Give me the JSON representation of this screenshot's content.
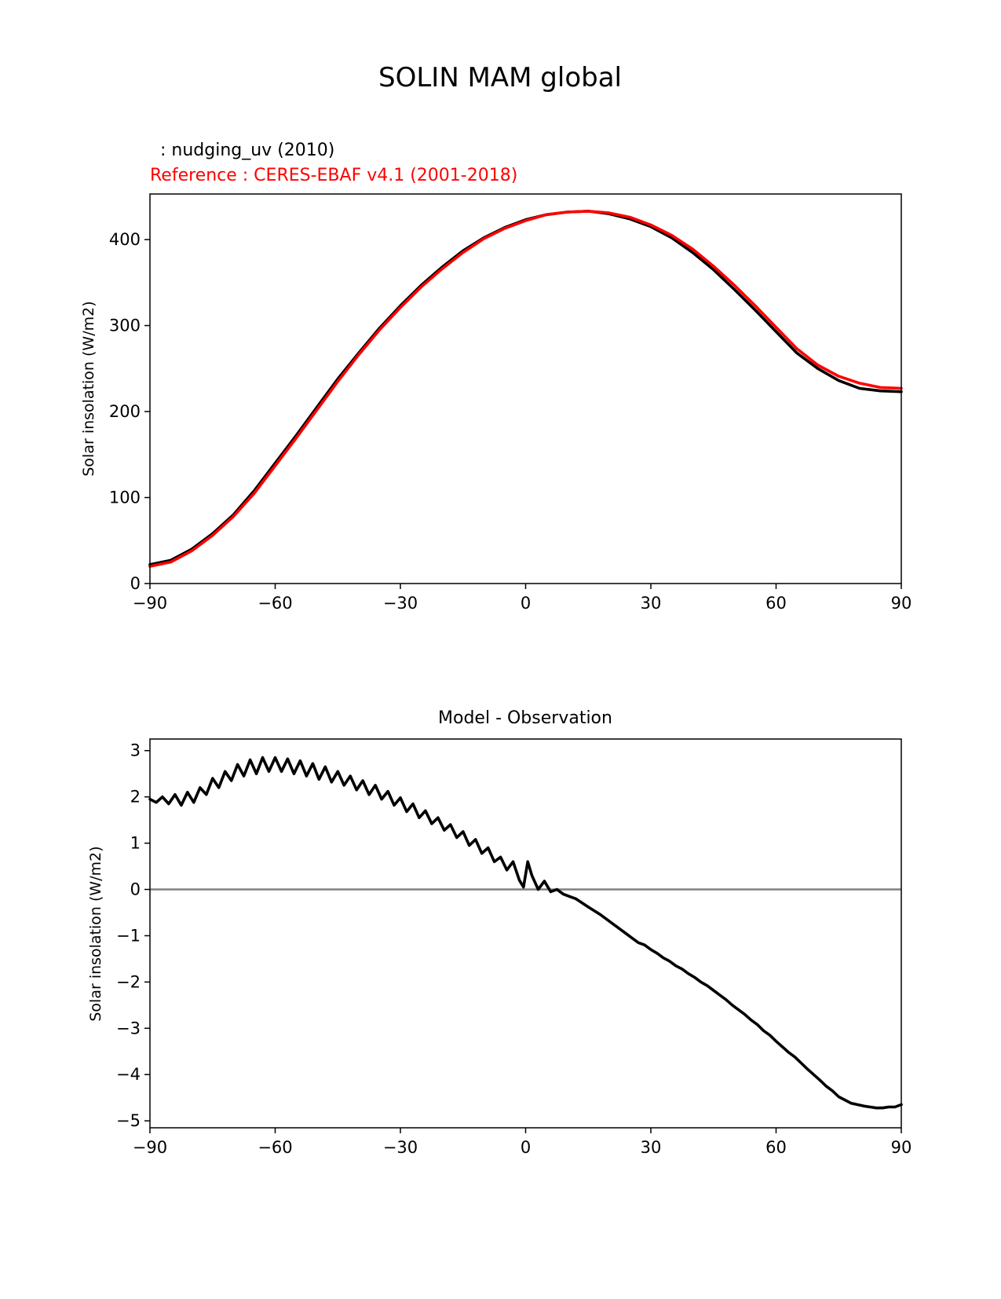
{
  "figure": {
    "title": "SOLIN MAM global"
  },
  "chart_data": [
    {
      "type": "line",
      "title": "",
      "legend": [
        {
          "text": " : nudging_uv (2010)",
          "color": "#000000"
        },
        {
          "text": "Reference : CERES-EBAF v4.1 (2001-2018)",
          "color": "#ff0000"
        }
      ],
      "xlabel": "",
      "ylabel": "Solar insolation (W/m2)",
      "xlim": [
        -90,
        90
      ],
      "ylim": [
        0,
        453
      ],
      "xticks": [
        -90,
        -60,
        -30,
        0,
        30,
        60,
        90
      ],
      "xtick_labels": [
        "−90",
        "−60",
        "−30",
        "0",
        "30",
        "60",
        "90"
      ],
      "yticks": [
        0,
        100,
        200,
        300,
        400
      ],
      "ytick_labels": [
        "0",
        "100",
        "200",
        "300",
        "400"
      ],
      "series": [
        {
          "color": "#000000",
          "x": [
            -90,
            -85,
            -80,
            -75,
            -70,
            -65,
            -60,
            -55,
            -50,
            -45,
            -40,
            -35,
            -30,
            -25,
            -20,
            -15,
            -10,
            -5,
            0,
            5,
            10,
            15,
            20,
            25,
            30,
            35,
            40,
            45,
            50,
            55,
            60,
            65,
            70,
            75,
            80,
            85,
            90
          ],
          "y": [
            22,
            27,
            40,
            58,
            80,
            108,
            140,
            172,
            205,
            238,
            268,
            297,
            323,
            347,
            368,
            387,
            402,
            414,
            423,
            429,
            432,
            433,
            430,
            424,
            415,
            402,
            385,
            365,
            342,
            318,
            293,
            268,
            250,
            236,
            227,
            224,
            223
          ]
        },
        {
          "color": "#ff0000",
          "x": [
            -90,
            -85,
            -80,
            -75,
            -70,
            -65,
            -60,
            -55,
            -50,
            -45,
            -40,
            -35,
            -30,
            -25,
            -20,
            -15,
            -10,
            -5,
            0,
            5,
            10,
            15,
            20,
            25,
            30,
            35,
            40,
            45,
            50,
            55,
            60,
            65,
            70,
            75,
            80,
            85,
            90
          ],
          "y": [
            20,
            25,
            38,
            56,
            78,
            105,
            137,
            169,
            202,
            235,
            266,
            295,
            321,
            345,
            366,
            385,
            401,
            413,
            422,
            429,
            432,
            433,
            431,
            426,
            417,
            405,
            389,
            369,
            347,
            323,
            298,
            273,
            254,
            241,
            233,
            228,
            227
          ]
        }
      ]
    },
    {
      "type": "line",
      "title": "Model - Observation",
      "xlabel": "",
      "ylabel": "Solar insolation (W/m2)",
      "xlim": [
        -90,
        90
      ],
      "ylim": [
        -5.15,
        3.25
      ],
      "xticks": [
        -90,
        -60,
        -30,
        0,
        30,
        60,
        90
      ],
      "xtick_labels": [
        "−90",
        "−60",
        "−30",
        "0",
        "30",
        "60",
        "90"
      ],
      "yticks": [
        3,
        2,
        1,
        0,
        -1,
        -2,
        -3,
        -4,
        -5
      ],
      "ytick_labels": [
        "3",
        "2",
        "1",
        "0",
        "−1",
        "−2",
        "−3",
        "−4",
        "−5"
      ],
      "reference_line": {
        "y": 0,
        "color": "#808080"
      },
      "series": [
        {
          "color": "#000000",
          "x": [
            -90,
            -88.5,
            -87,
            -85.5,
            -84,
            -82.5,
            -81,
            -79.5,
            -78,
            -76.5,
            -75,
            -73.5,
            -72,
            -70.5,
            -69,
            -67.5,
            -66,
            -64.5,
            -63,
            -61.5,
            -60,
            -58.5,
            -57,
            -55.5,
            -54,
            -52.5,
            -51,
            -49.5,
            -48,
            -46.5,
            -45,
            -43.5,
            -42,
            -40.5,
            -39,
            -37.5,
            -36,
            -34.5,
            -33,
            -31.5,
            -30,
            -28.5,
            -27,
            -25.5,
            -24,
            -22.5,
            -21,
            -19.5,
            -18,
            -16.5,
            -15,
            -13.5,
            -12,
            -10.5,
            -9,
            -7.5,
            -6,
            -4.5,
            -3,
            -1.5,
            -0.5,
            0.5,
            1.5,
            3,
            4.5,
            6,
            7.5,
            9,
            10.5,
            12,
            15,
            18,
            21,
            22.5,
            24,
            25.5,
            27,
            28.5,
            30,
            31.5,
            33,
            34.5,
            36,
            37.5,
            39,
            40.5,
            42,
            43.5,
            45,
            46.5,
            48,
            49.5,
            51,
            52.5,
            54,
            55.5,
            57,
            58.5,
            60,
            61.5,
            63,
            64.5,
            66,
            67.5,
            69,
            70.5,
            72,
            73.5,
            75,
            76.5,
            78,
            79.5,
            81,
            82.5,
            84,
            85.5,
            87,
            88.5,
            90
          ],
          "y": [
            1.95,
            1.88,
            2.0,
            1.85,
            2.05,
            1.82,
            2.1,
            1.88,
            2.2,
            2.05,
            2.4,
            2.2,
            2.55,
            2.35,
            2.7,
            2.45,
            2.8,
            2.5,
            2.85,
            2.55,
            2.85,
            2.55,
            2.82,
            2.5,
            2.78,
            2.45,
            2.72,
            2.38,
            2.65,
            2.32,
            2.55,
            2.25,
            2.45,
            2.15,
            2.35,
            2.05,
            2.25,
            1.95,
            2.12,
            1.82,
            1.98,
            1.68,
            1.85,
            1.55,
            1.7,
            1.42,
            1.55,
            1.28,
            1.4,
            1.12,
            1.25,
            0.95,
            1.08,
            0.78,
            0.9,
            0.6,
            0.7,
            0.42,
            0.6,
            0.2,
            0.05,
            0.6,
            0.3,
            0.0,
            0.18,
            -0.05,
            0.0,
            -0.1,
            -0.15,
            -0.2,
            -0.38,
            -0.55,
            -0.75,
            -0.85,
            -0.95,
            -1.05,
            -1.15,
            -1.2,
            -1.3,
            -1.38,
            -1.48,
            -1.55,
            -1.65,
            -1.72,
            -1.82,
            -1.9,
            -2.0,
            -2.08,
            -2.18,
            -2.28,
            -2.38,
            -2.5,
            -2.6,
            -2.7,
            -2.82,
            -2.92,
            -3.05,
            -3.15,
            -3.28,
            -3.4,
            -3.52,
            -3.62,
            -3.75,
            -3.88,
            -4.0,
            -4.12,
            -4.25,
            -4.35,
            -4.48,
            -4.55,
            -4.62,
            -4.65,
            -4.68,
            -4.7,
            -4.72,
            -4.72,
            -4.7,
            -4.7,
            -4.65
          ]
        }
      ]
    }
  ]
}
